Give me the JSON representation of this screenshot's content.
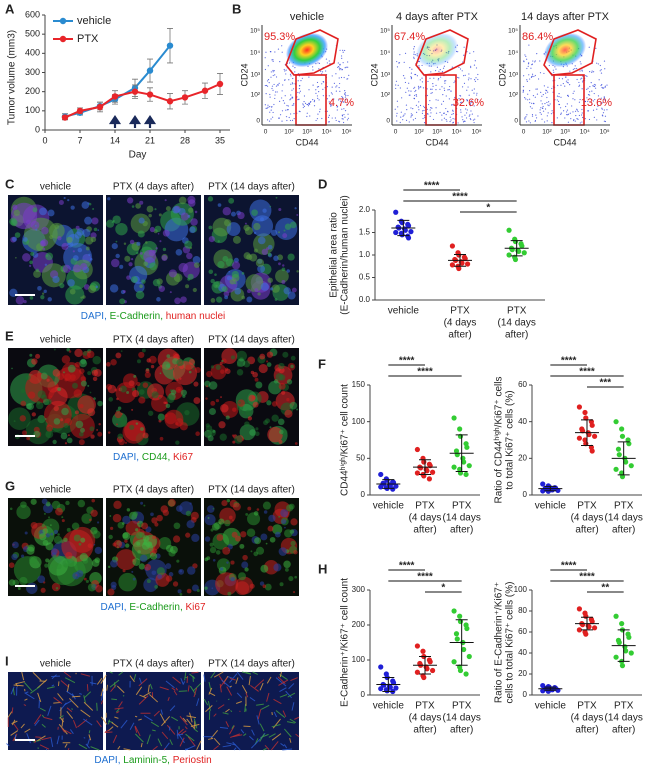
{
  "chart_data": [
    {
      "type": "line",
      "label": "A",
      "x_label": "Day",
      "y_label": "Tumor volume (mm3)",
      "xlim": [
        0,
        37
      ],
      "xticks": [
        0,
        7,
        14,
        21,
        28,
        35
      ],
      "ylim": [
        0,
        600
      ],
      "yticks": [
        0,
        100,
        200,
        300,
        400,
        500,
        600
      ],
      "dosing_days": [
        14,
        18,
        21
      ],
      "legend": "upper left",
      "series": [
        {
          "name": "vehicle",
          "color": "#2a8bd0",
          "x": [
            4,
            7,
            11,
            14,
            18,
            21,
            25
          ],
          "values": [
            70,
            90,
            125,
            160,
            220,
            310,
            440
          ],
          "errors": [
            15,
            12,
            20,
            25,
            45,
            60,
            90
          ]
        },
        {
          "name": "PTX",
          "color": "#e8252a",
          "x": [
            4,
            7,
            11,
            14,
            18,
            21,
            25,
            28,
            32,
            35
          ],
          "values": [
            65,
            100,
            120,
            175,
            200,
            185,
            150,
            170,
            205,
            240
          ],
          "errors": [
            12,
            15,
            25,
            30,
            35,
            35,
            40,
            35,
            40,
            55
          ]
        }
      ]
    },
    {
      "type": "dot",
      "label": "D",
      "y_label": [
        "Epithelial area ratio",
        "(E-Cadherin/human nuclei)"
      ],
      "categories": [
        [
          "vehicle"
        ],
        [
          "PTX",
          "(4 days",
          "after)"
        ],
        [
          "PTX",
          "(14 days",
          "after)"
        ]
      ],
      "ylim": [
        0,
        2
      ],
      "yticks": [
        {
          "value": 0,
          "label": "0.0"
        },
        {
          "value": 0.5,
          "label": "0.5"
        },
        {
          "value": 1,
          "label": "1.0"
        },
        {
          "value": 1.5,
          "label": "1.5"
        },
        {
          "value": 2,
          "label": "2.0"
        }
      ],
      "groups": [
        {
          "color": "#1f1fd6",
          "values": [
            1.95,
            1.75,
            1.72,
            1.68,
            1.65,
            1.62,
            1.6,
            1.58,
            1.55,
            1.52,
            1.5,
            1.48,
            1.45,
            1.42,
            1.38
          ],
          "mean": 1.6,
          "sd": 0.17
        },
        {
          "color": "#e02020",
          "values": [
            1.2,
            1.05,
            1.0,
            0.95,
            0.92,
            0.9,
            0.88,
            0.85,
            0.82,
            0.8,
            0.78,
            0.75,
            0.7
          ],
          "mean": 0.88,
          "sd": 0.13
        },
        {
          "color": "#33cc33",
          "values": [
            1.55,
            1.35,
            1.3,
            1.25,
            1.2,
            1.15,
            1.12,
            1.1,
            1.08,
            1.05,
            1.0,
            0.95,
            0.9
          ],
          "mean": 1.15,
          "sd": 0.17
        }
      ],
      "comparisons": [
        {
          "from": 0,
          "to": 1,
          "label": "****"
        },
        {
          "from": 0,
          "to": 2,
          "label": "****"
        },
        {
          "from": 1,
          "to": 2,
          "label": "*"
        }
      ]
    },
    {
      "type": "dot",
      "label": "F",
      "y_label": [
        "CD44ʰⁱᵍʰ/Ki67⁺ cell count"
      ],
      "categories": [
        [
          "vehicle"
        ],
        [
          "PTX",
          "(4 days",
          "after)"
        ],
        [
          "PTX",
          "(14 days",
          "after)"
        ]
      ],
      "ylim": [
        0,
        150
      ],
      "yticks": [
        0,
        50,
        100,
        150
      ],
      "groups": [
        {
          "color": "#1f1fd6",
          "values": [
            28,
            22,
            20,
            18,
            17,
            16,
            15,
            14,
            13,
            12,
            11,
            10,
            9,
            8
          ],
          "mean": 15,
          "sd": 6
        },
        {
          "color": "#e02020",
          "values": [
            62,
            50,
            45,
            42,
            40,
            38,
            37,
            35,
            33,
            31,
            30,
            28,
            26,
            22
          ],
          "mean": 38,
          "sd": 10
        },
        {
          "color": "#33cc33",
          "values": [
            105,
            90,
            80,
            70,
            65,
            60,
            55,
            50,
            45,
            40,
            38,
            35,
            30,
            28
          ],
          "mean": 57,
          "sd": 25
        }
      ],
      "comparisons": [
        {
          "from": 0,
          "to": 1,
          "label": "****"
        },
        {
          "from": 0,
          "to": 2,
          "label": "****"
        }
      ]
    },
    {
      "type": "dot",
      "y_label": [
        "Ratio of CD44ʰⁱᵍʰ/Ki67⁺ cells",
        "to total Ki67⁺ cells (%)"
      ],
      "categories": [
        [
          "vehicle"
        ],
        [
          "PTX",
          "(4 days",
          "after)"
        ],
        [
          "PTX",
          "(14 days",
          "after)"
        ]
      ],
      "ylim": [
        0,
        60
      ],
      "yticks": [
        0,
        20,
        40,
        60
      ],
      "groups": [
        {
          "color": "#1f1fd6",
          "values": [
            6,
            5,
            4.5,
            4,
            3.8,
            3.5,
            3.2,
            3,
            2.8,
            2.5,
            2.2,
            2
          ],
          "mean": 3.5,
          "sd": 1.2
        },
        {
          "color": "#e02020",
          "values": [
            48,
            45,
            42,
            40,
            38,
            36,
            35,
            34,
            33,
            32,
            31,
            30,
            28,
            26,
            24
          ],
          "mean": 34,
          "sd": 7
        },
        {
          "color": "#33cc33",
          "values": [
            40,
            36,
            32,
            30,
            28,
            25,
            22,
            20,
            18,
            16,
            14,
            12,
            10
          ],
          "mean": 20,
          "sd": 9
        }
      ],
      "comparisons": [
        {
          "from": 0,
          "to": 1,
          "label": "****"
        },
        {
          "from": 0,
          "to": 2,
          "label": "****"
        },
        {
          "from": 1,
          "to": 2,
          "label": "***"
        }
      ]
    },
    {
      "type": "dot",
      "label": "H",
      "y_label": [
        "E-Cadherin⁺/Ki67⁺ cell count"
      ],
      "categories": [
        [
          "vehicle"
        ],
        [
          "PTX",
          "(4 days",
          "after)"
        ],
        [
          "PTX",
          "(14 days",
          "after)"
        ]
      ],
      "ylim": [
        0,
        300
      ],
      "yticks": [
        0,
        100,
        200,
        300
      ],
      "groups": [
        {
          "color": "#1f1fd6",
          "values": [
            80,
            60,
            50,
            40,
            35,
            30,
            28,
            25,
            22,
            20,
            18,
            15,
            12,
            10
          ],
          "mean": 30,
          "sd": 20
        },
        {
          "color": "#e02020",
          "values": [
            140,
            125,
            110,
            100,
            95,
            90,
            85,
            80,
            75,
            70,
            65,
            55,
            50
          ],
          "mean": 85,
          "sd": 25
        },
        {
          "color": "#33cc33",
          "values": [
            240,
            225,
            210,
            200,
            190,
            175,
            160,
            150,
            130,
            110,
            95,
            80,
            70,
            60
          ],
          "mean": 150,
          "sd": 65
        }
      ],
      "comparisons": [
        {
          "from": 0,
          "to": 1,
          "label": "****"
        },
        {
          "from": 0,
          "to": 2,
          "label": "****"
        },
        {
          "from": 1,
          "to": 2,
          "label": "*"
        }
      ]
    },
    {
      "type": "dot",
      "y_label": [
        "Ratio of E-Cadherin⁺/Ki67⁺",
        "cells to total Ki67⁺ cells (%)"
      ],
      "categories": [
        [
          "vehicle"
        ],
        [
          "PTX",
          "(4 days",
          "after)"
        ],
        [
          "PTX",
          "(14 days",
          "after)"
        ]
      ],
      "ylim": [
        0,
        100
      ],
      "yticks": [
        0,
        20,
        40,
        60,
        80,
        100
      ],
      "groups": [
        {
          "color": "#1f1fd6",
          "values": [
            9,
            8,
            7.5,
            7,
            6.5,
            6,
            6,
            5.5,
            5,
            4.5,
            4,
            3.5
          ],
          "mean": 6,
          "sd": 1.5
        },
        {
          "color": "#e02020",
          "values": [
            82,
            78,
            75,
            72,
            70,
            68,
            67,
            66,
            65,
            64,
            62,
            60,
            58
          ],
          "mean": 68,
          "sd": 6
        },
        {
          "color": "#33cc33",
          "values": [
            75,
            68,
            62,
            58,
            55,
            52,
            50,
            46,
            42,
            40,
            36,
            32,
            28
          ],
          "mean": 47,
          "sd": 15
        }
      ],
      "comparisons": [
        {
          "from": 0,
          "to": 1,
          "label": "****"
        },
        {
          "from": 0,
          "to": 2,
          "label": "****"
        },
        {
          "from": 1,
          "to": 2,
          "label": "**"
        }
      ]
    }
  ],
  "flow": {
    "label": "B",
    "x_label": "CD44",
    "y_label": "CD24",
    "ticks": [
      "0",
      "10²",
      "10³",
      "10⁴",
      "10⁵"
    ],
    "plots": [
      {
        "title": "vehicle",
        "upper": "95.3%",
        "lower": "4.7%"
      },
      {
        "title": "4 days after PTX",
        "upper": "67.4%",
        "lower": "32.6%"
      },
      {
        "title": "14 days after PTX",
        "upper": "86.4%",
        "lower": "13.6%"
      }
    ]
  },
  "micrographs": [
    {
      "label": "C",
      "titles": [
        "vehicle",
        "PTX (4 days after)",
        "PTX (14 days after)"
      ],
      "caption": [
        {
          "text": "DAPI, ",
          "color": "#1f6fd0"
        },
        {
          "text": "E-Cadherin, ",
          "color": "#1a9a1a"
        },
        {
          "text": "human nuclei",
          "color": "#e02020"
        }
      ]
    },
    {
      "label": "E",
      "titles": [
        "vehicle",
        "PTX (4 days after)",
        "PTX (14 days after)"
      ],
      "caption": [
        {
          "text": "DAPI, ",
          "color": "#1f6fd0"
        },
        {
          "text": "CD44, ",
          "color": "#1a9a1a"
        },
        {
          "text": "Ki67",
          "color": "#e02020"
        }
      ]
    },
    {
      "label": "G",
      "titles": [
        "vehicle",
        "PTX (4 days after)",
        "PTX (14 days after)"
      ],
      "caption": [
        {
          "text": "DAPI, ",
          "color": "#1f6fd0"
        },
        {
          "text": "E-Cadherin, ",
          "color": "#1a9a1a"
        },
        {
          "text": "Ki67",
          "color": "#e02020"
        }
      ]
    },
    {
      "label": "I",
      "titles": [
        "vehicle",
        "PTX (4 days after)",
        "PTX (14 days after)"
      ],
      "caption": [
        {
          "text": "DAPI, ",
          "color": "#1f6fd0"
        },
        {
          "text": "Laminin-5, ",
          "color": "#1a9a1a"
        },
        {
          "text": "Periostin",
          "color": "#e02020"
        }
      ]
    }
  ]
}
